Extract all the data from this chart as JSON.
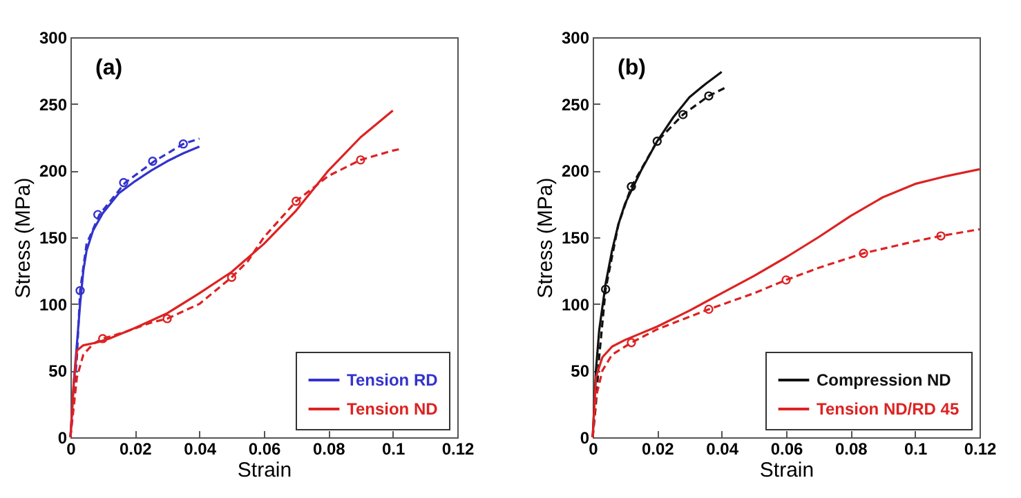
{
  "chart_data": [
    {
      "type": "line",
      "xlabel": "Strain",
      "ylabel": "Stress (MPa)",
      "annotations": [
        "(a)"
      ],
      "xlim": [
        0,
        0.12
      ],
      "ylim": [
        0,
        300
      ],
      "xticks": [
        0,
        0.02,
        0.04,
        0.06,
        0.08,
        0.1,
        0.12
      ],
      "yticks": [
        0,
        50,
        100,
        150,
        200,
        250,
        300
      ],
      "grid": false,
      "legend": "bottom right",
      "series": [
        {
          "name": "Tension RD",
          "color": "#3333cc",
          "line_style": "solid",
          "x": [
            0,
            0.001,
            0.002,
            0.003,
            0.004,
            0.005,
            0.007,
            0.01,
            0.015,
            0.02,
            0.025,
            0.03,
            0.035,
            0.04
          ],
          "values": [
            0,
            40,
            70,
            100,
            125,
            140,
            155,
            168,
            183,
            192,
            200,
            207,
            213,
            218
          ]
        },
        {
          "color": "#3333cc",
          "line_style": "dashed",
          "x": [
            0,
            0.002,
            0.003,
            0.005,
            0.009,
            0.017,
            0.026,
            0.035,
            0.04
          ],
          "values": [
            0,
            60,
            110,
            145,
            167,
            191,
            207,
            220,
            224
          ]
        },
        {
          "type": "scatter",
          "color": "#3333cc",
          "marker": "circle",
          "x": [
            0.003,
            0.0085,
            0.0165,
            0.0255,
            0.035
          ],
          "values": [
            110,
            167,
            191,
            207,
            220
          ]
        },
        {
          "name": "Tension ND",
          "color": "#dd2222",
          "line_style": "solid",
          "x": [
            0,
            0.001,
            0.002,
            0.004,
            0.008,
            0.012,
            0.02,
            0.03,
            0.04,
            0.05,
            0.06,
            0.07,
            0.08,
            0.09,
            0.1
          ],
          "values": [
            0,
            40,
            65,
            69,
            71,
            74,
            82,
            93,
            108,
            124,
            145,
            170,
            200,
            225,
            245
          ]
        },
        {
          "color": "#dd2222",
          "line_style": "dashed",
          "x": [
            0,
            0.002,
            0.004,
            0.007,
            0.01,
            0.017,
            0.025,
            0.03,
            0.04,
            0.05,
            0.055,
            0.06,
            0.07,
            0.08,
            0.09,
            0.1,
            0.102
          ],
          "values": [
            0,
            45,
            62,
            70,
            74,
            79,
            86,
            89,
            100,
            120,
            132,
            150,
            177,
            196,
            208,
            215,
            216
          ]
        },
        {
          "type": "scatter",
          "color": "#dd2222",
          "marker": "circle",
          "x": [
            0.01,
            0.03,
            0.05,
            0.07,
            0.09
          ],
          "values": [
            74,
            89,
            120,
            177,
            208
          ]
        }
      ]
    },
    {
      "type": "line",
      "xlabel": "Strain",
      "ylabel": "Stress (MPa)",
      "annotations": [
        "(b)"
      ],
      "xlim": [
        0,
        0.12
      ],
      "ylim": [
        0,
        300
      ],
      "xticks": [
        0,
        0.02,
        0.04,
        0.06,
        0.08,
        0.1,
        0.12
      ],
      "yticks": [
        0,
        50,
        100,
        150,
        200,
        250,
        300
      ],
      "grid": false,
      "legend": "bottom right",
      "series": [
        {
          "name": "Compression ND",
          "color": "#111111",
          "line_style": "solid",
          "x": [
            0,
            0.001,
            0.002,
            0.004,
            0.006,
            0.008,
            0.01,
            0.015,
            0.02,
            0.025,
            0.03,
            0.035,
            0.04
          ],
          "values": [
            0,
            50,
            80,
            115,
            140,
            160,
            175,
            200,
            222,
            240,
            255,
            265,
            274
          ]
        },
        {
          "color": "#111111",
          "line_style": "dashed",
          "x": [
            0,
            0.001,
            0.002,
            0.004,
            0.008,
            0.012,
            0.02,
            0.028,
            0.036,
            0.041
          ],
          "values": [
            0,
            25,
            60,
            111,
            160,
            188,
            222,
            242,
            256,
            262
          ]
        },
        {
          "type": "scatter",
          "color": "#111111",
          "marker": "circle",
          "x": [
            0.004,
            0.012,
            0.02,
            0.028,
            0.036
          ],
          "values": [
            111,
            188,
            222,
            242,
            256
          ]
        },
        {
          "name": "Tension ND/RD 45",
          "color": "#dd2222",
          "line_style": "solid",
          "x": [
            0,
            0.001,
            0.003,
            0.006,
            0.01,
            0.02,
            0.03,
            0.04,
            0.05,
            0.06,
            0.07,
            0.08,
            0.09,
            0.1,
            0.11,
            0.12
          ],
          "values": [
            0,
            45,
            60,
            68,
            73,
            83,
            95,
            108,
            121,
            135,
            150,
            166,
            180,
            190,
            196,
            201
          ]
        },
        {
          "color": "#dd2222",
          "line_style": "dashed",
          "x": [
            0,
            0.001,
            0.003,
            0.006,
            0.012,
            0.02,
            0.036,
            0.05,
            0.06,
            0.07,
            0.084,
            0.1,
            0.108,
            0.12
          ],
          "values": [
            0,
            30,
            50,
            62,
            71,
            81,
            96,
            108,
            118,
            127,
            138,
            147,
            151,
            156
          ]
        },
        {
          "type": "scatter",
          "color": "#dd2222",
          "marker": "circle",
          "x": [
            0.012,
            0.036,
            0.06,
            0.084,
            0.108
          ],
          "values": [
            71,
            96,
            118,
            138,
            151
          ]
        }
      ]
    }
  ]
}
